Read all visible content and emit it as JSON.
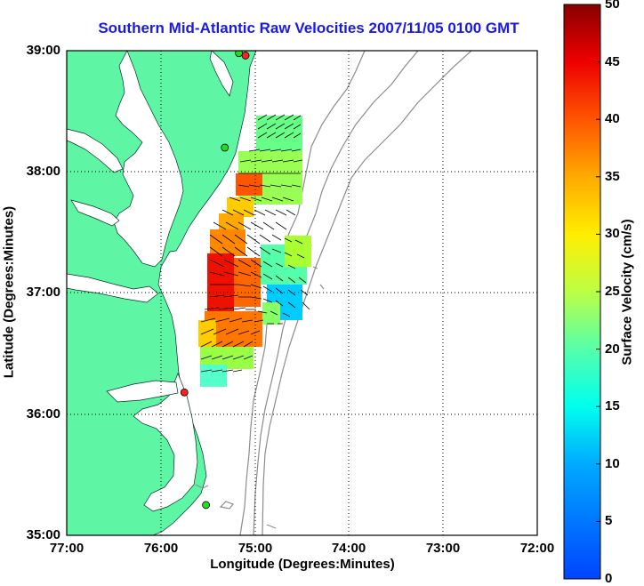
{
  "title": "Southern Mid-Atlantic Raw Velocities 2007/11/05 0100 GMT",
  "xlabel": "Longitude (Degrees:Minutes)",
  "ylabel": "Latitude (Degrees:Minutes)",
  "colorbar": {
    "label": "Surface Velocity (cm/s)",
    "ticks": [
      "0",
      "5",
      "10",
      "15",
      "20",
      "25",
      "30",
      "35",
      "40",
      "45",
      "50"
    ],
    "range": [
      0,
      50
    ],
    "colormap": "jet"
  },
  "axes": {
    "x_ticks": [
      "77:00",
      "76:00",
      "75:00",
      "74:00",
      "73:00",
      "72:00"
    ],
    "y_ticks": [
      "39:00",
      "38:00",
      "37:00",
      "36:00",
      "35:00"
    ],
    "lon_range": [
      -77,
      -72
    ],
    "lat_range": [
      35,
      39
    ],
    "grid": "dotted"
  },
  "colors": {
    "title": "#1a1ae6",
    "land": "#5ef5a5",
    "bathymetry": "#8c8c8c",
    "station_red": "#ff2020",
    "station_green": "#22dd22"
  },
  "stations": [
    {
      "lon": -75.1,
      "lat": 38.96,
      "color": "red"
    },
    {
      "lon": -75.17,
      "lat": 38.98,
      "color": "green"
    },
    {
      "lon": -75.32,
      "lat": 38.2,
      "color": "green"
    },
    {
      "lon": -75.75,
      "lat": 36.18,
      "color": "red"
    },
    {
      "lon": -75.52,
      "lat": 35.25,
      "color": "green"
    }
  ]
}
